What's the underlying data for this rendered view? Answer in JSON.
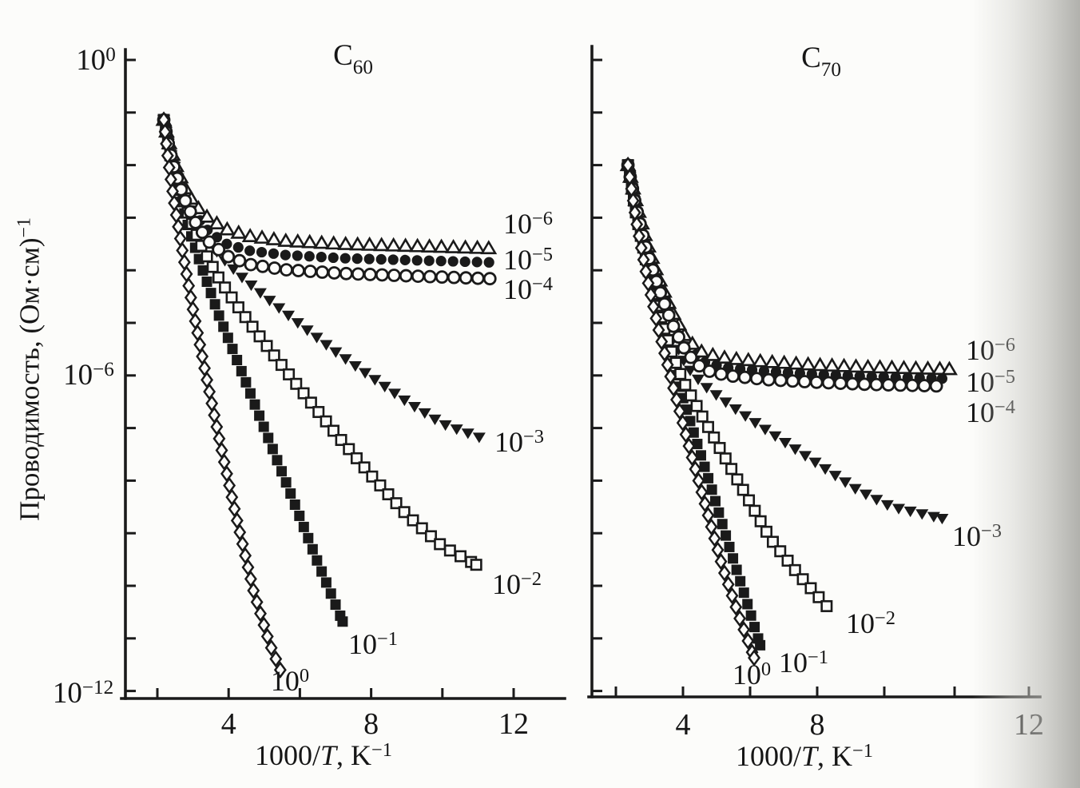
{
  "figure": {
    "y_axis_label": {
      "main": "Проводимость, (Ом·см)",
      "exp": "−1"
    },
    "x_axis_label": {
      "prefix": "1000/",
      "variable": "T",
      "suffix": ", K",
      "exp": "−1"
    }
  },
  "chart_data": [
    {
      "type": "scatter",
      "title": {
        "base": "C",
        "sub": "60"
      },
      "xlabel": "1000/T, K^-1",
      "ylabel": "Проводимость, (Ом·см)^-1",
      "x_range": [
        1,
        12.5
      ],
      "y_scale": "log10",
      "y_log_range": [
        -12,
        0
      ],
      "x_ticks": [
        2,
        4,
        6,
        8,
        10,
        12
      ],
      "x_tick_labels": [
        "4",
        "8",
        "12"
      ],
      "y_tick_labels": [
        {
          "base": "10",
          "exp": "0"
        },
        {
          "base": "10",
          "exp": "−6"
        },
        {
          "base": "10",
          "exp": "−12"
        }
      ],
      "series": [
        {
          "label": {
            "base": "10",
            "exp": "−6"
          },
          "marker": "triangle-open",
          "points": [
            [
              2.18,
              -1.14
            ],
            [
              2.32,
              -1.55
            ],
            [
              2.5,
              -1.97
            ],
            [
              2.75,
              -2.4
            ],
            [
              3.05,
              -2.75
            ],
            [
              3.45,
              -3.02
            ],
            [
              3.95,
              -3.22
            ],
            [
              4.6,
              -3.35
            ],
            [
              5.6,
              -3.44
            ],
            [
              7.2,
              -3.5
            ],
            [
              9.2,
              -3.54
            ],
            [
              11.3,
              -3.58
            ]
          ]
        },
        {
          "label": {
            "base": "10",
            "exp": "−5"
          },
          "marker": "circle-filled",
          "points": [
            [
              2.18,
              -1.14
            ],
            [
              2.32,
              -1.6
            ],
            [
              2.5,
              -2.06
            ],
            [
              2.75,
              -2.52
            ],
            [
              3.05,
              -2.92
            ],
            [
              3.45,
              -3.27
            ],
            [
              3.95,
              -3.5
            ],
            [
              4.6,
              -3.63
            ],
            [
              5.6,
              -3.71
            ],
            [
              7.2,
              -3.77
            ],
            [
              9.2,
              -3.81
            ],
            [
              11.35,
              -3.85
            ]
          ]
        },
        {
          "label": {
            "base": "10",
            "exp": "−4"
          },
          "marker": "circle-open",
          "points": [
            [
              2.18,
              -1.14
            ],
            [
              2.32,
              -1.64
            ],
            [
              2.5,
              -2.14
            ],
            [
              2.75,
              -2.63
            ],
            [
              3.05,
              -3.07
            ],
            [
              3.45,
              -3.46
            ],
            [
              3.95,
              -3.73
            ],
            [
              4.6,
              -3.89
            ],
            [
              5.6,
              -3.99
            ],
            [
              7.2,
              -4.06
            ],
            [
              9.2,
              -4.11
            ],
            [
              11.35,
              -4.16
            ]
          ]
        },
        {
          "label": {
            "base": "10",
            "exp": "−3"
          },
          "marker": "triangle-down-filled",
          "points": [
            [
              2.18,
              -1.14
            ],
            [
              2.35,
              -1.72
            ],
            [
              2.6,
              -2.3
            ],
            [
              2.9,
              -2.82
            ],
            [
              3.25,
              -3.27
            ],
            [
              3.75,
              -3.72
            ],
            [
              4.35,
              -4.12
            ],
            [
              5.05,
              -4.52
            ],
            [
              6.0,
              -5.03
            ],
            [
              7.0,
              -5.55
            ],
            [
              8.0,
              -6.03
            ],
            [
              9.0,
              -6.5
            ],
            [
              10.0,
              -6.92
            ],
            [
              11.05,
              -7.18
            ]
          ]
        },
        {
          "label": {
            "base": "10",
            "exp": "−2"
          },
          "marker": "square-open",
          "points": [
            [
              2.18,
              -1.14
            ],
            [
              2.35,
              -1.78
            ],
            [
              2.6,
              -2.42
            ],
            [
              2.9,
              -3.0
            ],
            [
              3.25,
              -3.56
            ],
            [
              3.75,
              -4.18
            ],
            [
              4.35,
              -4.78
            ],
            [
              5.05,
              -5.42
            ],
            [
              6.0,
              -6.25
            ],
            [
              7.0,
              -7.1
            ],
            [
              8.0,
              -7.9
            ],
            [
              9.0,
              -8.65
            ],
            [
              10.0,
              -9.25
            ],
            [
              10.95,
              -9.6
            ]
          ]
        },
        {
          "label": {
            "base": "10",
            "exp": "−1"
          },
          "marker": "square-filled",
          "points": [
            [
              2.18,
              -1.14
            ],
            [
              2.35,
              -1.84
            ],
            [
              2.6,
              -2.55
            ],
            [
              2.9,
              -3.25
            ],
            [
              3.25,
              -3.95
            ],
            [
              3.75,
              -4.9
            ],
            [
              4.35,
              -5.9
            ],
            [
              5.0,
              -7.0
            ],
            [
              5.8,
              -8.35
            ],
            [
              6.5,
              -9.55
            ],
            [
              7.2,
              -10.68
            ]
          ]
        },
        {
          "label": {
            "base": "10",
            "exp": "0"
          },
          "marker": "diamond-open",
          "points": [
            [
              2.18,
              -1.14
            ],
            [
              2.3,
              -1.9
            ],
            [
              2.48,
              -2.75
            ],
            [
              2.72,
              -3.7
            ],
            [
              3.0,
              -4.75
            ],
            [
              3.35,
              -5.95
            ],
            [
              3.75,
              -7.25
            ],
            [
              4.2,
              -8.65
            ],
            [
              4.7,
              -10.1
            ],
            [
              5.15,
              -11.1
            ],
            [
              5.45,
              -11.6
            ]
          ]
        }
      ]
    },
    {
      "type": "scatter",
      "title": {
        "base": "C",
        "sub": "70"
      },
      "xlabel": "1000/T, K^-1",
      "ylabel": "Проводимость, (Ом·см)^-1",
      "x_range": [
        1.2,
        12.5
      ],
      "y_scale": "log10",
      "y_log_range": [
        -12,
        0
      ],
      "x_ticks": [
        2,
        4,
        6,
        8,
        10,
        12
      ],
      "x_tick_labels": [
        "4",
        "8",
        "12"
      ],
      "y_tick_labels": [],
      "series": [
        {
          "label": {
            "base": "10",
            "exp": "−6"
          },
          "marker": "triangle-open",
          "points": [
            [
              2.36,
              -2.0
            ],
            [
              2.6,
              -2.7
            ],
            [
              2.9,
              -3.42
            ],
            [
              3.25,
              -4.1
            ],
            [
              3.65,
              -4.75
            ],
            [
              4.1,
              -5.3
            ],
            [
              4.6,
              -5.57
            ],
            [
              5.3,
              -5.67
            ],
            [
              6.5,
              -5.74
            ],
            [
              8.0,
              -5.8
            ],
            [
              9.5,
              -5.84
            ],
            [
              10.9,
              -5.88
            ]
          ]
        },
        {
          "label": {
            "base": "10",
            "exp": "−5"
          },
          "marker": "circle-filled",
          "points": [
            [
              2.36,
              -2.0
            ],
            [
              2.6,
              -2.75
            ],
            [
              2.9,
              -3.5
            ],
            [
              3.25,
              -4.2
            ],
            [
              3.65,
              -4.87
            ],
            [
              4.1,
              -5.44
            ],
            [
              4.6,
              -5.74
            ],
            [
              5.3,
              -5.85
            ],
            [
              6.5,
              -5.92
            ],
            [
              8.0,
              -5.98
            ],
            [
              9.5,
              -6.02
            ],
            [
              10.8,
              -6.06
            ]
          ]
        },
        {
          "label": {
            "base": "10",
            "exp": "−4"
          },
          "marker": "circle-open",
          "points": [
            [
              2.36,
              -2.0
            ],
            [
              2.6,
              -2.8
            ],
            [
              2.9,
              -3.58
            ],
            [
              3.25,
              -4.3
            ],
            [
              3.65,
              -4.98
            ],
            [
              4.1,
              -5.57
            ],
            [
              4.6,
              -5.89
            ],
            [
              5.3,
              -6.0
            ],
            [
              6.5,
              -6.08
            ],
            [
              8.0,
              -6.13
            ],
            [
              9.5,
              -6.17
            ],
            [
              10.75,
              -6.2
            ]
          ]
        },
        {
          "label": {
            "base": "10",
            "exp": "−3"
          },
          "marker": "triangle-down-filled",
          "points": [
            [
              2.36,
              -2.0
            ],
            [
              2.6,
              -2.85
            ],
            [
              2.9,
              -3.68
            ],
            [
              3.25,
              -4.48
            ],
            [
              3.65,
              -5.2
            ],
            [
              4.1,
              -5.82
            ],
            [
              4.6,
              -6.18
            ],
            [
              5.3,
              -6.52
            ],
            [
              6.2,
              -6.92
            ],
            [
              7.2,
              -7.34
            ],
            [
              8.2,
              -7.76
            ],
            [
              9.2,
              -8.18
            ],
            [
              10.1,
              -8.5
            ],
            [
              10.8,
              -8.72
            ]
          ]
        },
        {
          "label": {
            "base": "10",
            "exp": "−2"
          },
          "marker": "square-open",
          "points": [
            [
              2.36,
              -2.0
            ],
            [
              2.6,
              -2.92
            ],
            [
              2.9,
              -3.82
            ],
            [
              3.25,
              -4.68
            ],
            [
              3.6,
              -5.45
            ],
            [
              4.0,
              -6.1
            ],
            [
              4.55,
              -6.75
            ],
            [
              5.2,
              -7.5
            ],
            [
              5.9,
              -8.3
            ],
            [
              6.6,
              -9.1
            ],
            [
              7.4,
              -9.75
            ],
            [
              8.3,
              -10.4
            ]
          ]
        },
        {
          "label": {
            "base": "10",
            "exp": "−1"
          },
          "marker": "square-filled",
          "points": [
            [
              2.36,
              -2.0
            ],
            [
              2.62,
              -3.0
            ],
            [
              2.95,
              -4.0
            ],
            [
              3.35,
              -5.0
            ],
            [
              3.8,
              -6.0
            ],
            [
              4.3,
              -7.05
            ],
            [
              4.85,
              -8.15
            ],
            [
              5.35,
              -9.2
            ],
            [
              5.85,
              -10.2
            ],
            [
              6.3,
              -11.13
            ]
          ]
        },
        {
          "label": {
            "base": "10",
            "exp": "0"
          },
          "marker": "diamond-open",
          "points": [
            [
              2.36,
              -2.0
            ],
            [
              2.6,
              -3.05
            ],
            [
              2.92,
              -4.12
            ],
            [
              3.28,
              -5.15
            ],
            [
              3.7,
              -6.2
            ],
            [
              4.18,
              -7.35
            ],
            [
              4.68,
              -8.5
            ],
            [
              5.18,
              -9.65
            ],
            [
              5.68,
              -10.6
            ],
            [
              6.12,
              -11.37
            ]
          ]
        }
      ]
    }
  ],
  "scan": {
    "ink_color": "#1a1a1a",
    "page_color": "#fcfcfa",
    "shadow_color": "#a4a49f"
  }
}
